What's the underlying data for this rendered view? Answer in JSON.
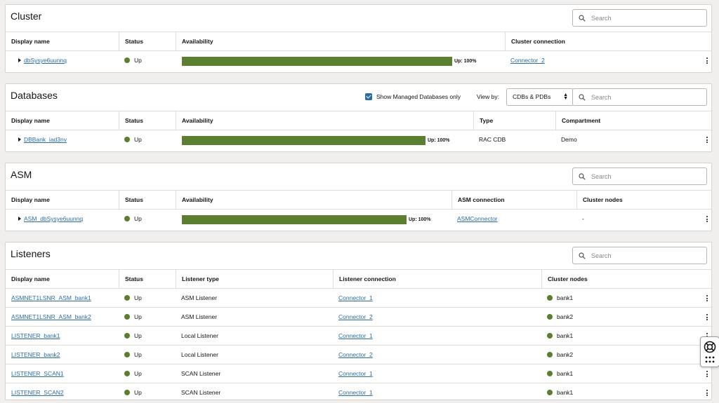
{
  "search_placeholder": "Search",
  "cluster": {
    "title": "Cluster",
    "columns": [
      "Display name",
      "Status",
      "Availability",
      "Cluster connection"
    ],
    "row": {
      "name": "dbSysye6uunnq",
      "status": "Up",
      "availability_label": "Up: 100%",
      "availability": 1.0,
      "connection": "Connector_2"
    }
  },
  "databases": {
    "title": "Databases",
    "checkbox_label": "Show Managed Databases only",
    "view_by_label": "View by:",
    "view_by_value": "CDBs & PDBs",
    "columns": [
      "Display name",
      "Status",
      "Availability",
      "Type",
      "Compartment"
    ],
    "row": {
      "name": "DBBank_iad3nv",
      "status": "Up",
      "availability_label": "Up: 100%",
      "availability": 1.0,
      "type": "RAC CDB",
      "compartment": "Demo"
    }
  },
  "asm": {
    "title": "ASM",
    "columns": [
      "Display name",
      "Status",
      "Availability",
      "ASM connection",
      "Cluster nodes"
    ],
    "row": {
      "name": "ASM_dbSysye6uunnq",
      "status": "Up",
      "availability_label": "Up: 100%",
      "availability": 1.0,
      "connection": "ASMConnector",
      "nodes": "-"
    }
  },
  "listeners": {
    "title": "Listeners",
    "columns": [
      "Display name",
      "Status",
      "Listener type",
      "Listener connection",
      "Cluster nodes"
    ],
    "rows": [
      {
        "name": "ASMNET1LSNR_ASM_bank1",
        "status": "Up",
        "type": "ASM Listener",
        "connection": "Connector_1",
        "node": "bank1"
      },
      {
        "name": "ASMNET1LSNR_ASM_bank2",
        "status": "Up",
        "type": "ASM Listener",
        "connection": "Connector_2",
        "node": "bank2"
      },
      {
        "name": "LISTENER_bank1",
        "status": "Up",
        "type": "Local Listener",
        "connection": "Connector_1",
        "node": "bank1"
      },
      {
        "name": "LISTENER_bank2",
        "status": "Up",
        "type": "Local Listener",
        "connection": "Connector_2",
        "node": "bank2"
      },
      {
        "name": "LISTENER_SCAN1",
        "status": "Up",
        "type": "SCAN Listener",
        "connection": "Connector_1",
        "node": "bank1"
      },
      {
        "name": "LISTENER_SCAN2",
        "status": "Up",
        "type": "SCAN Listener",
        "connection": "Connector_1",
        "node": "bank1"
      }
    ]
  },
  "colors": {
    "status_up": "#5a7f2e",
    "link": "#2b6ca3",
    "bar_fill": "#5a7f2e"
  },
  "icons": {
    "search": "search-icon",
    "more": "more-actions-icon",
    "expand": "expand-caret-icon",
    "help": "help-lifebuoy-icon",
    "apps": "apps-grid-icon"
  }
}
